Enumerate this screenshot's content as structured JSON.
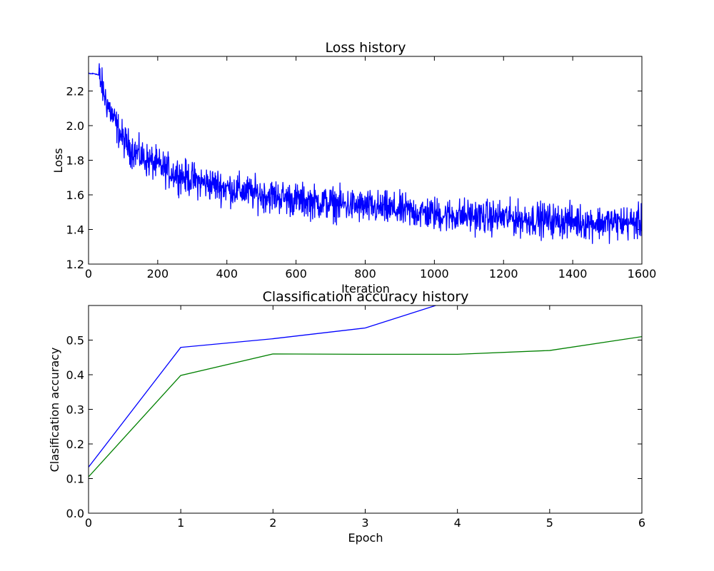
{
  "chart_data": [
    {
      "type": "line",
      "title": "Loss history",
      "xlabel": "Iteration",
      "ylabel": "Loss",
      "xlim": [
        0,
        1600
      ],
      "ylim": [
        1.2,
        2.4
      ],
      "xticks": [
        0,
        200,
        400,
        600,
        800,
        1000,
        1200,
        1400,
        1600
      ],
      "xtick_labels": [
        "0",
        "200",
        "400",
        "600",
        "800",
        "1000",
        "1200",
        "1400",
        "1600"
      ],
      "yticks": [
        1.2,
        1.4,
        1.6,
        1.8,
        2.0,
        2.2
      ],
      "ytick_labels": [
        "1.2",
        "1.4",
        "1.6",
        "1.8",
        "2.0",
        "2.2"
      ],
      "grid": false,
      "series": [
        {
          "color": "#0000ff",
          "x": [
            0,
            10,
            20,
            30,
            40,
            50,
            60,
            70,
            80,
            90,
            100,
            120,
            140,
            160,
            180,
            200,
            220,
            240,
            260,
            280,
            300,
            330,
            360,
            400,
            450,
            500,
            550,
            600,
            650,
            700,
            750,
            800,
            850,
            900,
            950,
            1000,
            1050,
            1100,
            1150,
            1200,
            1250,
            1300,
            1350,
            1400,
            1450,
            1500,
            1550,
            1600
          ],
          "y": [
            2.3,
            2.3,
            2.3,
            2.29,
            2.22,
            2.15,
            2.1,
            2.05,
            2.0,
            1.96,
            1.92,
            1.87,
            1.84,
            1.81,
            1.79,
            1.77,
            1.75,
            1.73,
            1.72,
            1.7,
            1.69,
            1.67,
            1.66,
            1.64,
            1.62,
            1.6,
            1.59,
            1.57,
            1.56,
            1.55,
            1.54,
            1.53,
            1.52,
            1.51,
            1.5,
            1.49,
            1.48,
            1.48,
            1.47,
            1.47,
            1.46,
            1.46,
            1.45,
            1.45,
            1.44,
            1.44,
            1.44,
            1.44
          ],
          "noise_amplitude": 0.06
        }
      ]
    },
    {
      "type": "line",
      "title": "Classification accuracy history",
      "xlabel": "Epoch",
      "ylabel": "Clasification accuracy",
      "xlim": [
        0,
        6
      ],
      "ylim": [
        0.0,
        0.6
      ],
      "xticks": [
        0,
        1,
        2,
        3,
        4,
        5,
        6
      ],
      "xtick_labels": [
        "0",
        "1",
        "2",
        "3",
        "4",
        "5",
        "6"
      ],
      "yticks": [
        0.0,
        0.1,
        0.2,
        0.3,
        0.4,
        0.5
      ],
      "ytick_labels": [
        "0.0",
        "0.1",
        "0.2",
        "0.3",
        "0.4",
        "0.5"
      ],
      "grid": false,
      "series": [
        {
          "color": "#0000ff",
          "x": [
            0,
            1,
            2,
            3,
            4
          ],
          "y": [
            0.133,
            0.479,
            0.504,
            0.535,
            0.62
          ]
        },
        {
          "color": "#008000",
          "x": [
            0,
            1,
            2,
            3,
            4,
            5,
            6
          ],
          "y": [
            0.105,
            0.398,
            0.46,
            0.459,
            0.459,
            0.47,
            0.51
          ]
        }
      ]
    }
  ]
}
